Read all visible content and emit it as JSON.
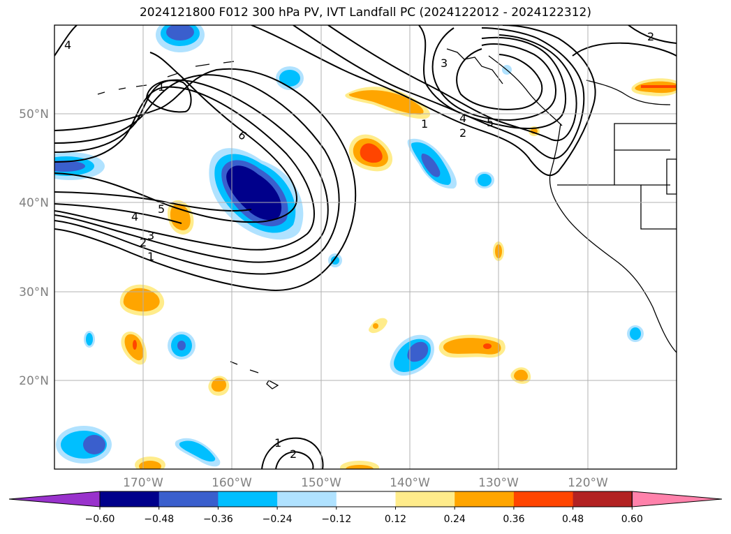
{
  "title": "2024121800 F012 300 hPa PV, IVT Landfall PC (2024122012 - 2024122312)",
  "axes": {
    "longitude_ticks": [
      "170°W",
      "160°W",
      "150°W",
      "140°W",
      "130°W",
      "120°W"
    ],
    "latitude_ticks": [
      "50°N",
      "40°N",
      "30°N",
      "20°N"
    ],
    "lon_range": [
      180,
      110
    ],
    "lat_range": [
      10,
      60
    ],
    "grid": true
  },
  "colorbar": {
    "ticks": [
      "−0.60",
      "−0.48",
      "−0.36",
      "−0.24",
      "−0.12",
      "0.12",
      "0.24",
      "0.36",
      "0.48",
      "0.60"
    ],
    "colors": [
      "#9932cc",
      "#00008b",
      "#3a5fcd",
      "#00bfff",
      "#b0e2ff",
      "#ffffff",
      "#ffec8b",
      "#ffa500",
      "#ff4500",
      "#b22222",
      "#ff82ab"
    ],
    "extend": "both"
  },
  "pv_contour_labels": [
    "1",
    "2",
    "3",
    "4",
    "5",
    "6"
  ]
}
